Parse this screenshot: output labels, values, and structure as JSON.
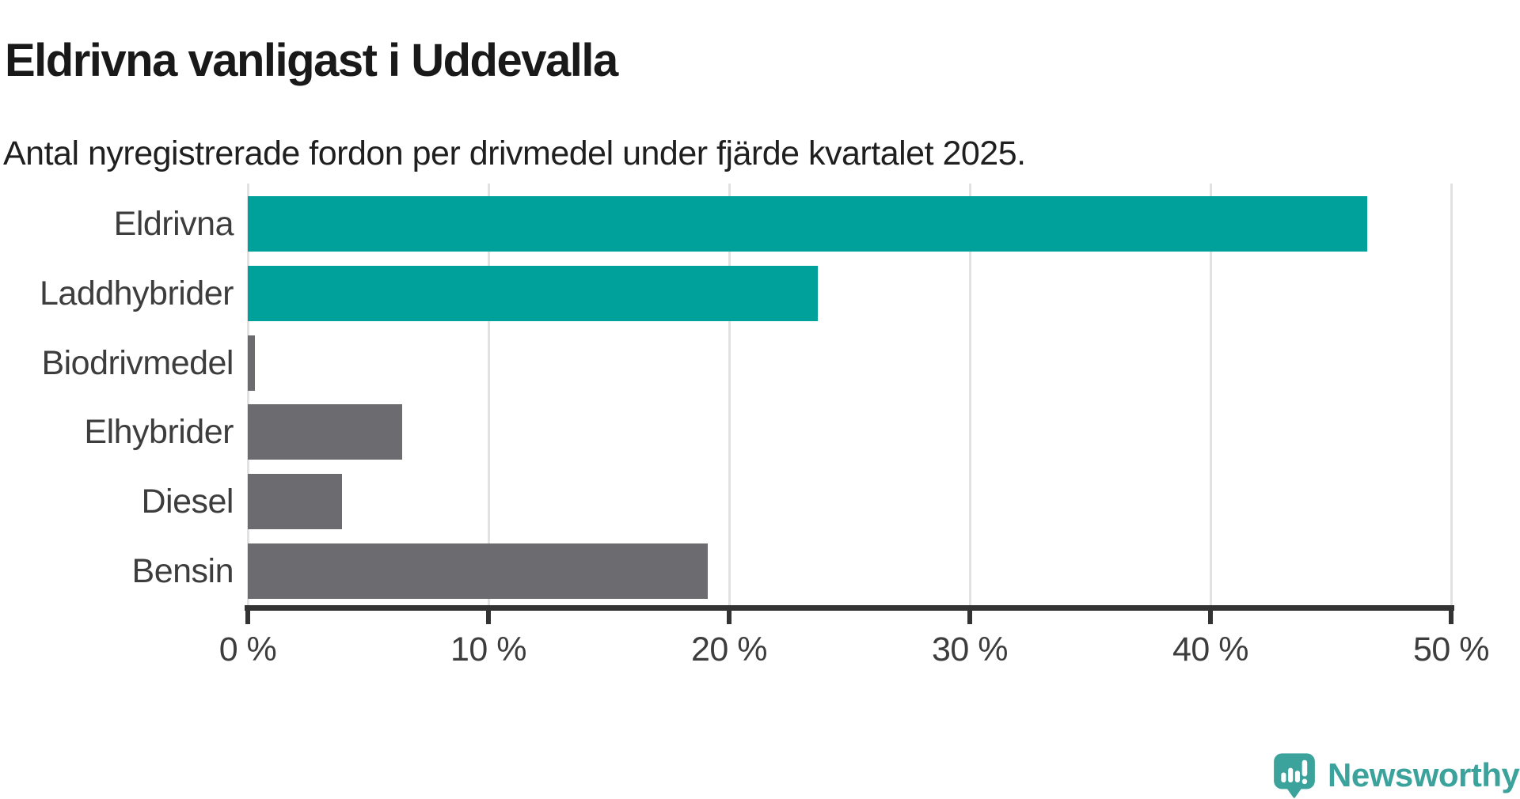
{
  "title": "Eldrivna vanligast i Uddevalla",
  "subtitle": "Antal nyregistrerade fordon per drivmedel under fjärde kvartalet 2025.",
  "colors": {
    "bar_teal": "#00a19a",
    "bar_gray": "#6c6c70",
    "gridline": "#e2e2e2",
    "axis": "#333333",
    "label_text": "#3d3d3d",
    "title_text": "#191919",
    "logo_teal": "#3ba39c"
  },
  "chart_data": {
    "type": "bar",
    "orientation": "horizontal",
    "title": "Eldrivna vanligast i Uddevalla",
    "subtitle": "Antal nyregistrerade fordon per drivmedel under fjärde kvartalet 2025.",
    "categories": [
      "Eldrivna",
      "Laddhybrider",
      "Biodrivmedel",
      "Elhybrider",
      "Diesel",
      "Bensin"
    ],
    "values": [
      46.5,
      23.7,
      0.3,
      6.4,
      3.9,
      19.1
    ],
    "unit": "%",
    "bar_colors": [
      "#00a19a",
      "#00a19a",
      "#6c6c70",
      "#6c6c70",
      "#6c6c70",
      "#6c6c70"
    ],
    "xlabel": "",
    "ylabel": "",
    "xlim": [
      0,
      50
    ],
    "x_ticks": [
      0,
      10,
      20,
      30,
      40,
      50
    ],
    "x_tick_labels": [
      "0 %",
      "10 %",
      "20 %",
      "30 %",
      "40 %",
      "50 %"
    ],
    "grid": "vertical",
    "legend": "none"
  },
  "logo": {
    "text": "Newsworthy",
    "icon": "newsworthy-speech-bubble-chart-icon"
  }
}
